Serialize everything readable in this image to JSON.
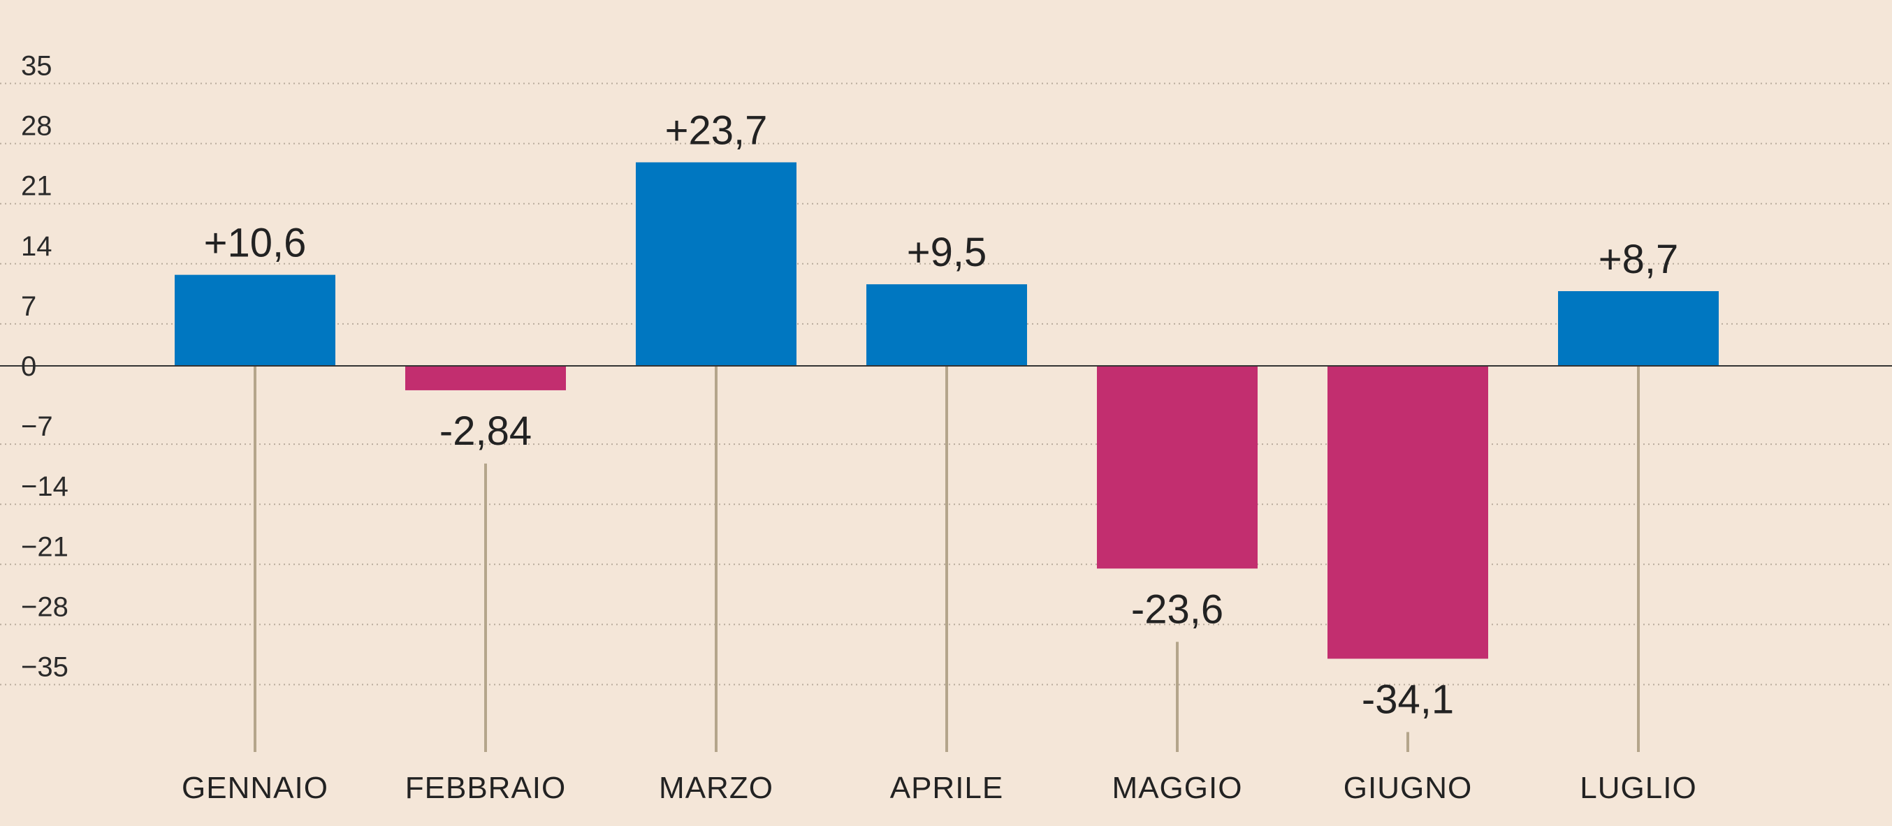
{
  "chart_data": {
    "type": "bar",
    "title": "",
    "xlabel": "",
    "ylabel": "",
    "categories": [
      "GENNAIO",
      "FEBBRAIO",
      "MARZO",
      "APRILE",
      "MAGGIO",
      "GIUGNO",
      "LUGLIO"
    ],
    "values": [
      10.6,
      -2.84,
      23.7,
      9.5,
      -23.6,
      -34.1,
      8.7
    ],
    "value_labels": [
      "+10,6",
      "-2,84",
      "+23,7",
      "+9,5",
      "-23,6",
      "-34,1",
      "+8,7"
    ],
    "yticks": [
      35,
      28,
      21,
      14,
      7,
      0,
      -7,
      -14,
      -21,
      -28,
      -35
    ],
    "ytick_labels": [
      "35",
      "28",
      "21",
      "14",
      "7",
      "0",
      "−7",
      "−14",
      "−21",
      "−28",
      "−35"
    ],
    "ylim": [
      -45,
      43
    ],
    "grid": true,
    "colors": {
      "positive": "#0077c1",
      "negative": "#c22e6f",
      "background": "#f4e6d8",
      "gridline": "#b8ab9c",
      "zero_line": "#333333",
      "leader_line": "#b4a58b"
    }
  }
}
